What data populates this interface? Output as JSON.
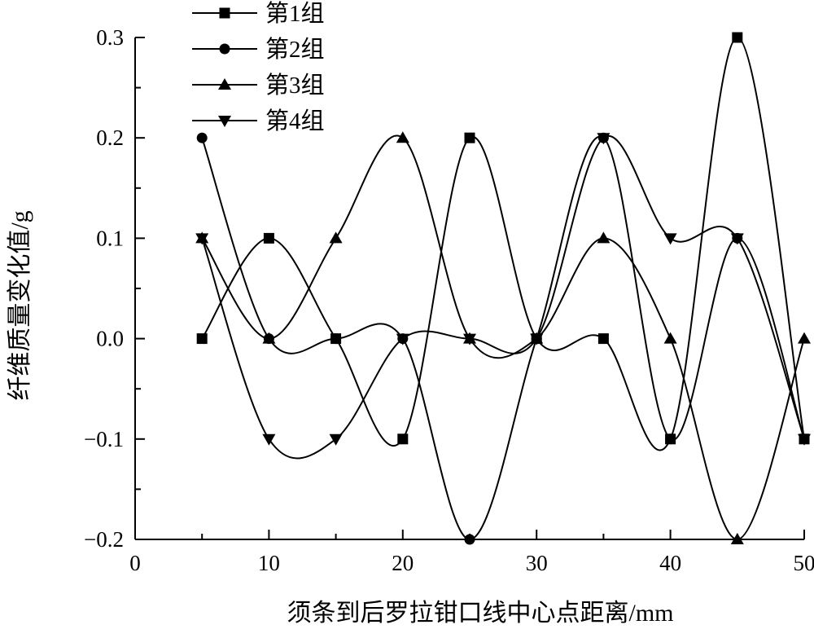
{
  "chart_data": {
    "type": "line",
    "smooth": true,
    "xlabel": "须条到后罗拉钳口线中心点距离/mm",
    "ylabel": "纤维质量变化值/g",
    "xlim": [
      0,
      50
    ],
    "ylim": [
      -0.2,
      0.3
    ],
    "xticks": [
      "0",
      "10",
      "20",
      "30",
      "40",
      "50"
    ],
    "yticks": [
      "−0.2",
      "−0.1",
      "0.0",
      "0.1",
      "0.2",
      "0.3"
    ],
    "legend_position": "top-left",
    "grid": false,
    "x": [
      5,
      10,
      15,
      20,
      25,
      30,
      35,
      40,
      45,
      50
    ],
    "series": [
      {
        "name": "第1组",
        "marker": "square",
        "values": [
          0.0,
          0.1,
          0.0,
          -0.1,
          0.2,
          0.0,
          0.0,
          -0.1,
          0.3,
          -0.1
        ]
      },
      {
        "name": "第2组",
        "marker": "circle",
        "values": [
          0.2,
          0.0,
          0.0,
          0.0,
          -0.2,
          0.0,
          0.2,
          -0.1,
          0.1,
          -0.1
        ]
      },
      {
        "name": "第3组",
        "marker": "triangle-up",
        "values": [
          0.1,
          0.0,
          0.1,
          0.2,
          0.0,
          0.0,
          0.1,
          0.0,
          -0.2,
          0.0
        ]
      },
      {
        "name": "第4组",
        "marker": "triangle-down",
        "values": [
          0.1,
          -0.1,
          -0.1,
          0.0,
          0.0,
          0.0,
          0.2,
          0.1,
          0.1,
          -0.1
        ]
      }
    ]
  }
}
